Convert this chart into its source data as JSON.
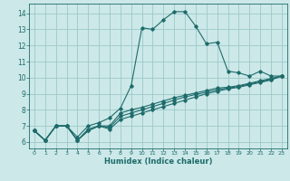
{
  "xlabel": "Humidex (Indice chaleur)",
  "background_color": "#cce8e8",
  "grid_color": "#9dc8c8",
  "line_color": "#1e6b6b",
  "xlim": [
    -0.5,
    23.5
  ],
  "ylim": [
    5.6,
    14.6
  ],
  "xticks": [
    0,
    1,
    2,
    3,
    4,
    5,
    6,
    7,
    8,
    9,
    10,
    11,
    12,
    13,
    14,
    15,
    16,
    17,
    18,
    19,
    20,
    21,
    22,
    23
  ],
  "yticks": [
    6,
    7,
    8,
    9,
    10,
    11,
    12,
    13,
    14
  ],
  "curve1_x": [
    0,
    1,
    2,
    3,
    4,
    5,
    6,
    7,
    8,
    9,
    10,
    11,
    12,
    13,
    14,
    15,
    16,
    17,
    18,
    19,
    20,
    21,
    22,
    23
  ],
  "curve1_y": [
    6.7,
    6.1,
    7.0,
    7.0,
    6.3,
    7.0,
    7.2,
    7.5,
    8.1,
    9.5,
    13.1,
    13.0,
    13.6,
    14.1,
    14.1,
    13.2,
    12.1,
    12.2,
    10.4,
    10.3,
    10.1,
    10.4,
    10.1,
    10.1
  ],
  "curve2_x": [
    0,
    1,
    2,
    3,
    4,
    5,
    6,
    7,
    8,
    9,
    10,
    11,
    12,
    13,
    14,
    15,
    16,
    17,
    18,
    19,
    20,
    21,
    22,
    23
  ],
  "curve2_y": [
    6.7,
    6.1,
    7.0,
    7.0,
    6.1,
    6.8,
    7.0,
    7.0,
    7.8,
    8.0,
    8.15,
    8.35,
    8.55,
    8.75,
    8.9,
    9.05,
    9.2,
    9.35,
    9.4,
    9.5,
    9.65,
    9.8,
    9.95,
    10.1
  ],
  "curve3_x": [
    0,
    1,
    2,
    3,
    4,
    5,
    6,
    7,
    8,
    9,
    10,
    11,
    12,
    13,
    14,
    15,
    16,
    17,
    18,
    19,
    20,
    21,
    22,
    23
  ],
  "curve3_y": [
    6.7,
    6.1,
    7.0,
    7.0,
    6.1,
    6.7,
    7.0,
    6.9,
    7.6,
    7.8,
    8.0,
    8.2,
    8.4,
    8.6,
    8.8,
    8.95,
    9.1,
    9.25,
    9.35,
    9.45,
    9.6,
    9.75,
    9.9,
    10.1
  ],
  "curve4_x": [
    0,
    1,
    2,
    3,
    4,
    5,
    6,
    7,
    8,
    9,
    10,
    11,
    12,
    13,
    14,
    15,
    16,
    17,
    18,
    19,
    20,
    21,
    22,
    23
  ],
  "curve4_y": [
    6.7,
    6.1,
    7.0,
    7.0,
    6.1,
    6.7,
    7.0,
    6.8,
    7.4,
    7.6,
    7.8,
    8.0,
    8.2,
    8.4,
    8.6,
    8.8,
    9.0,
    9.15,
    9.3,
    9.4,
    9.55,
    9.7,
    9.85,
    10.1
  ]
}
